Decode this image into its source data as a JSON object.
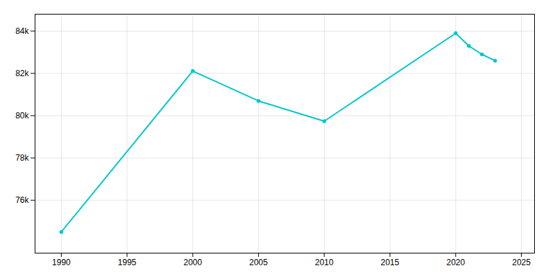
{
  "chart_data": {
    "type": "line",
    "x": [
      1990,
      2000,
      2005,
      2010,
      2020,
      2021,
      2022,
      2023
    ],
    "values": [
      74500,
      82111,
      80700,
      79740,
      83900,
      83300,
      82900,
      82600
    ],
    "color": "#00C8C8",
    "marker": "circle",
    "xlim": [
      1988,
      2026
    ],
    "ylim": [
      73500,
      84800
    ],
    "xticks": [
      1990,
      1995,
      2000,
      2005,
      2010,
      2015,
      2020,
      2025
    ],
    "yticks": [
      {
        "value": 76000,
        "label": "76k"
      },
      {
        "value": 78000,
        "label": "78k"
      },
      {
        "value": 80000,
        "label": "80k"
      },
      {
        "value": 82000,
        "label": "82k"
      },
      {
        "value": 84000,
        "label": "84k"
      }
    ],
    "grid": true
  }
}
